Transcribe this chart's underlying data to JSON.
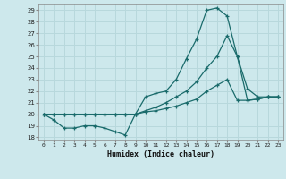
{
  "xlabel": "Humidex (Indice chaleur)",
  "bg_color": "#cde8ec",
  "grid_color": "#b0d0d8",
  "line_color": "#1a6b6b",
  "xlim": [
    -0.5,
    23.5
  ],
  "ylim": [
    17.8,
    29.5
  ],
  "xticks": [
    0,
    1,
    2,
    3,
    4,
    5,
    6,
    7,
    8,
    9,
    10,
    11,
    12,
    13,
    14,
    15,
    16,
    17,
    18,
    19,
    20,
    21,
    22,
    23
  ],
  "yticks": [
    18,
    19,
    20,
    21,
    22,
    23,
    24,
    25,
    26,
    27,
    28,
    29
  ],
  "series": [
    [
      20.0,
      19.5,
      18.8,
      18.8,
      19.0,
      19.0,
      18.8,
      18.5,
      18.2,
      20.0,
      21.5,
      21.8,
      22.0,
      23.0,
      24.8,
      26.5,
      29.0,
      29.2,
      28.5,
      25.0,
      22.2,
      21.5,
      21.5,
      21.5
    ],
    [
      20.0,
      20.0,
      20.0,
      20.0,
      20.0,
      20.0,
      20.0,
      20.0,
      20.0,
      20.0,
      20.2,
      20.3,
      20.5,
      20.7,
      21.0,
      21.3,
      22.0,
      22.5,
      23.0,
      21.2,
      21.2,
      21.3,
      21.5,
      21.5
    ],
    [
      20.0,
      20.0,
      20.0,
      20.0,
      20.0,
      20.0,
      20.0,
      20.0,
      20.0,
      20.0,
      20.3,
      20.6,
      21.0,
      21.5,
      22.0,
      22.8,
      24.0,
      25.0,
      26.8,
      25.0,
      21.2,
      21.3,
      21.5,
      21.5
    ]
  ]
}
